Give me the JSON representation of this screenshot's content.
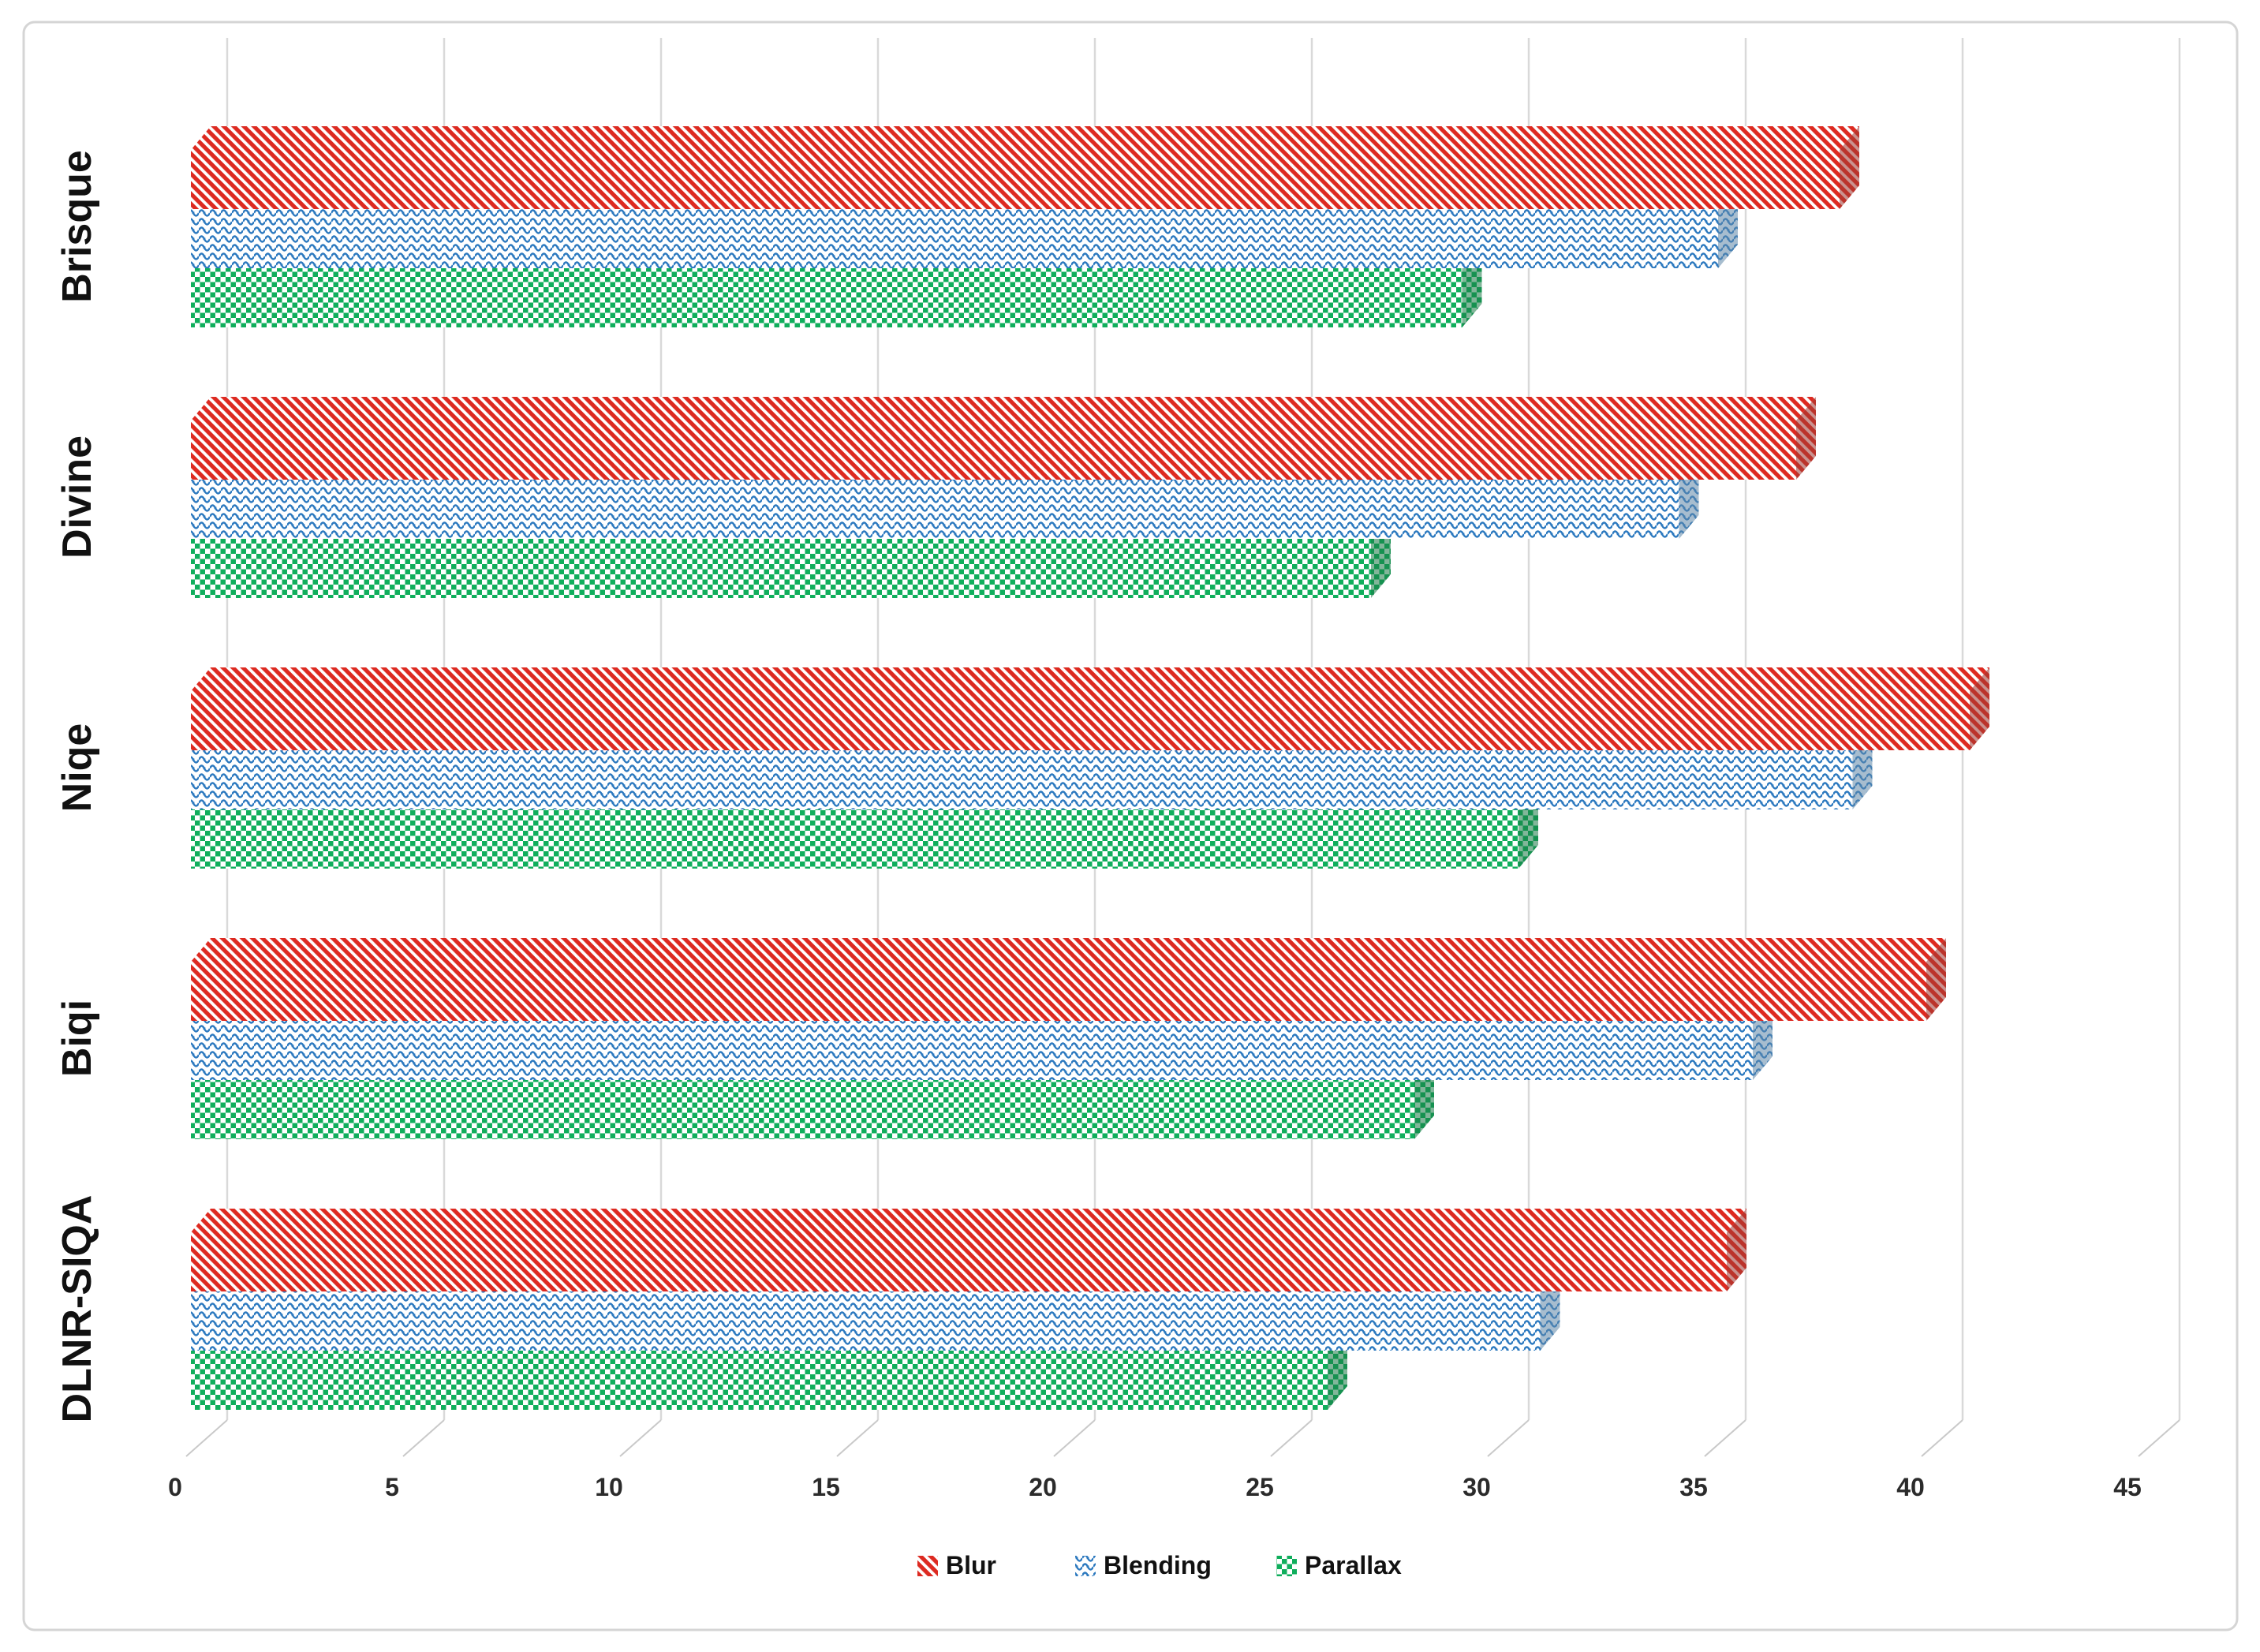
{
  "chart_data": {
    "type": "bar",
    "orientation": "horizontal",
    "effect": "3d",
    "title": "",
    "xlabel": "",
    "ylabel": "",
    "categories": [
      "Brisque",
      "Divine",
      "Niqe",
      "Biqi",
      "DLNR-SIQA"
    ],
    "series": [
      {
        "name": "Blur",
        "pattern": "diagonal-stripes",
        "color": "#DD2A21",
        "side_color": "#9E3B34",
        "values": [
          38.0,
          37.0,
          41.0,
          40.0,
          35.4
        ]
      },
      {
        "name": "Blending",
        "pattern": "waves",
        "color": "#2C79BF",
        "side_color": "#5E87A8",
        "values": [
          35.2,
          34.3,
          38.3,
          36.0,
          31.1
        ]
      },
      {
        "name": "Parallax",
        "pattern": "checkerboard",
        "color": "#10AE5C",
        "side_color": "#1B7A47",
        "values": [
          29.3,
          27.2,
          30.6,
          28.2,
          26.2
        ]
      }
    ],
    "xlim": [
      0,
      45
    ],
    "x_ticks": [
      "0",
      "5",
      "10",
      "15",
      "20",
      "25",
      "30",
      "35",
      "40",
      "45"
    ],
    "grid": "vertical-gridlines",
    "gridline_color": "#D9D9D9",
    "frame_border_color": "#D5D5D5",
    "background_color": "#FFFFFF",
    "legend_position": "bottom-center",
    "legend": [
      {
        "label": "Blur"
      },
      {
        "label": "Blending"
      },
      {
        "label": "Parallax"
      }
    ]
  }
}
